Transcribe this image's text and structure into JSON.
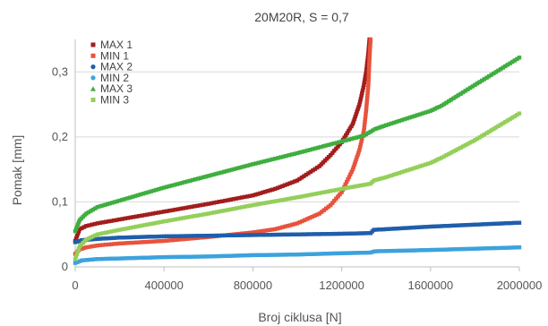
{
  "chart_data": {
    "type": "scatter",
    "title": "20M20R, S = 0,7",
    "xlabel": "Broj ciklusa [N]",
    "ylabel": "Pomak [mm]",
    "xlim": [
      0,
      2000000
    ],
    "ylim": [
      0,
      0.35
    ],
    "x_ticks": [
      0,
      400000,
      800000,
      1200000,
      1600000,
      2000000
    ],
    "x_tick_labels": [
      "0",
      "400000",
      "800000",
      "1200000",
      "1600000",
      "2000000"
    ],
    "y_ticks": [
      0,
      0.1,
      0.2,
      0.3
    ],
    "y_tick_labels": [
      "0",
      "0,1",
      "0,2",
      "0,3"
    ],
    "grid": "horizontal",
    "legend_position": "top-left",
    "series": [
      {
        "name": "MAX 1",
        "color": "#a31d1d",
        "marker": "square",
        "points": [
          [
            0,
            0.04
          ],
          [
            20000,
            0.058
          ],
          [
            50000,
            0.063
          ],
          [
            100000,
            0.067
          ],
          [
            200000,
            0.073
          ],
          [
            400000,
            0.085
          ],
          [
            600000,
            0.097
          ],
          [
            800000,
            0.11
          ],
          [
            900000,
            0.12
          ],
          [
            1000000,
            0.133
          ],
          [
            1100000,
            0.155
          ],
          [
            1150000,
            0.172
          ],
          [
            1200000,
            0.192
          ],
          [
            1250000,
            0.22
          ],
          [
            1280000,
            0.25
          ],
          [
            1300000,
            0.28
          ],
          [
            1310000,
            0.3
          ],
          [
            1320000,
            0.33
          ],
          [
            1325000,
            0.35
          ]
        ]
      },
      {
        "name": "MIN  1",
        "color": "#e8533c",
        "marker": "square",
        "points": [
          [
            0,
            0.02
          ],
          [
            20000,
            0.027
          ],
          [
            50000,
            0.03
          ],
          [
            100000,
            0.033
          ],
          [
            200000,
            0.036
          ],
          [
            400000,
            0.04
          ],
          [
            600000,
            0.046
          ],
          [
            800000,
            0.053
          ],
          [
            900000,
            0.058
          ],
          [
            1000000,
            0.067
          ],
          [
            1100000,
            0.082
          ],
          [
            1150000,
            0.095
          ],
          [
            1200000,
            0.115
          ],
          [
            1250000,
            0.15
          ],
          [
            1280000,
            0.18
          ],
          [
            1300000,
            0.21
          ],
          [
            1310000,
            0.24
          ],
          [
            1320000,
            0.28
          ],
          [
            1325000,
            0.32
          ],
          [
            1330000,
            0.35
          ]
        ]
      },
      {
        "name": "MAX 2",
        "color": "#1f5eaa",
        "marker": "circle",
        "points": [
          [
            0,
            0.038
          ],
          [
            30000,
            0.041
          ],
          [
            100000,
            0.043
          ],
          [
            200000,
            0.045
          ],
          [
            400000,
            0.047
          ],
          [
            600000,
            0.048
          ],
          [
            800000,
            0.049
          ],
          [
            1000000,
            0.05
          ],
          [
            1200000,
            0.051
          ],
          [
            1330000,
            0.052
          ],
          [
            1345000,
            0.057
          ],
          [
            1400000,
            0.058
          ],
          [
            1600000,
            0.062
          ],
          [
            1800000,
            0.065
          ],
          [
            2000000,
            0.068
          ]
        ]
      },
      {
        "name": "MIN  2",
        "color": "#3ca2dc",
        "marker": "circle",
        "points": [
          [
            0,
            0.006
          ],
          [
            30000,
            0.01
          ],
          [
            100000,
            0.012
          ],
          [
            200000,
            0.013
          ],
          [
            400000,
            0.015
          ],
          [
            600000,
            0.016
          ],
          [
            800000,
            0.018
          ],
          [
            1000000,
            0.019
          ],
          [
            1200000,
            0.021
          ],
          [
            1330000,
            0.022
          ],
          [
            1350000,
            0.024
          ],
          [
            1600000,
            0.026
          ],
          [
            1800000,
            0.028
          ],
          [
            2000000,
            0.03
          ]
        ]
      },
      {
        "name": "MAX 3",
        "color": "#3fae3f",
        "marker": "triangle",
        "points": [
          [
            0,
            0.055
          ],
          [
            20000,
            0.072
          ],
          [
            50000,
            0.082
          ],
          [
            100000,
            0.092
          ],
          [
            200000,
            0.102
          ],
          [
            400000,
            0.122
          ],
          [
            600000,
            0.14
          ],
          [
            800000,
            0.158
          ],
          [
            1000000,
            0.175
          ],
          [
            1200000,
            0.193
          ],
          [
            1300000,
            0.202
          ],
          [
            1350000,
            0.212
          ],
          [
            1400000,
            0.218
          ],
          [
            1600000,
            0.24
          ],
          [
            1650000,
            0.248
          ],
          [
            1800000,
            0.28
          ],
          [
            2000000,
            0.322
          ]
        ]
      },
      {
        "name": "MIN  3",
        "color": "#94cf5a",
        "marker": "square",
        "points": [
          [
            0,
            0.012
          ],
          [
            20000,
            0.032
          ],
          [
            50000,
            0.042
          ],
          [
            100000,
            0.05
          ],
          [
            200000,
            0.057
          ],
          [
            400000,
            0.07
          ],
          [
            600000,
            0.082
          ],
          [
            800000,
            0.095
          ],
          [
            1000000,
            0.107
          ],
          [
            1200000,
            0.12
          ],
          [
            1330000,
            0.128
          ],
          [
            1345000,
            0.133
          ],
          [
            1400000,
            0.138
          ],
          [
            1600000,
            0.16
          ],
          [
            1650000,
            0.168
          ],
          [
            1800000,
            0.195
          ],
          [
            2000000,
            0.236
          ]
        ]
      }
    ]
  }
}
